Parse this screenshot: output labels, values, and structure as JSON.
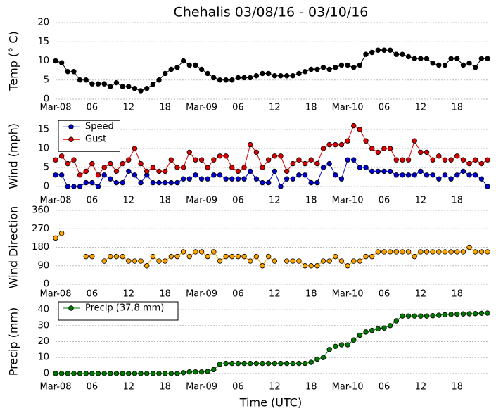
{
  "chart_data": [
    {
      "type": "line",
      "title": "Chehalis 03/08/16 - 03/10/16",
      "ylabel": "Temp (° C)",
      "categories": [
        "Mar-08",
        null,
        null,
        null,
        null,
        null,
        "06",
        null,
        null,
        null,
        null,
        null,
        "12",
        null,
        null,
        null,
        null,
        null,
        "18",
        null,
        null,
        null,
        null,
        null,
        "Mar-09",
        null,
        null,
        null,
        null,
        null,
        "06",
        null,
        null,
        null,
        null,
        null,
        "12",
        null,
        null,
        null,
        null,
        null,
        "18",
        null,
        null,
        null,
        null,
        null,
        "Mar-10",
        null,
        null,
        null,
        null,
        null,
        "06",
        null,
        null,
        null,
        null,
        null,
        "12",
        null,
        null,
        null,
        null,
        null,
        "18",
        null,
        null,
        null,
        null,
        null
      ],
      "ylim": [
        0,
        20
      ],
      "yticks": [
        0,
        5,
        10,
        15,
        20
      ],
      "grid": true,
      "series": [
        {
          "color": "#000000",
          "values": [
            10,
            9.5,
            7.2,
            7.2,
            5,
            5,
            4,
            4,
            4,
            3.3,
            4.3,
            3.3,
            3.3,
            2.8,
            2.2,
            2.8,
            3.9,
            5,
            6.7,
            7.8,
            8.3,
            10,
            8.9,
            8.9,
            7.8,
            6.7,
            5.6,
            5,
            5,
            5,
            5.6,
            5.6,
            5.6,
            6.1,
            6.7,
            6.7,
            6.1,
            6.1,
            6.1,
            6.1,
            6.7,
            7.2,
            7.8,
            7.8,
            8.3,
            7.8,
            8.3,
            8.9,
            8.9,
            8.3,
            8.9,
            11.7,
            12.2,
            12.8,
            12.8,
            12.8,
            11.7,
            11.7,
            11.1,
            10.6,
            10.6,
            10.6,
            9.4,
            8.9,
            8.9,
            10.6,
            10.6,
            8.9,
            9.4,
            8.3,
            10.6,
            10.6
          ]
        }
      ]
    },
    {
      "type": "line",
      "ylabel": "Wind (mph)",
      "legend": "upper left",
      "categories": [
        "Mar-08",
        null,
        null,
        null,
        null,
        null,
        "06",
        null,
        null,
        null,
        null,
        null,
        "12",
        null,
        null,
        null,
        null,
        null,
        "18",
        null,
        null,
        null,
        null,
        null,
        "Mar-09",
        null,
        null,
        null,
        null,
        null,
        "06",
        null,
        null,
        null,
        null,
        null,
        "12",
        null,
        null,
        null,
        null,
        null,
        "18",
        null,
        null,
        null,
        null,
        null,
        "Mar-10",
        null,
        null,
        null,
        null,
        null,
        "06",
        null,
        null,
        null,
        null,
        null,
        "12",
        null,
        null,
        null,
        null,
        null,
        "18",
        null,
        null,
        null,
        null,
        null
      ],
      "ylim": [
        -1,
        17
      ],
      "yticks": [
        0,
        5,
        10,
        15
      ],
      "grid": true,
      "series": [
        {
          "name": "Speed",
          "color": "#0000cc",
          "values": [
            3,
            3,
            0,
            0,
            0,
            1,
            1,
            0,
            3,
            2,
            1,
            1,
            4,
            3,
            1,
            3,
            1,
            1,
            1,
            1,
            1,
            2,
            2,
            3,
            2,
            2,
            3,
            3,
            2,
            2,
            2,
            2,
            4,
            2,
            1,
            1,
            4,
            0,
            2,
            2,
            3,
            3,
            1,
            1,
            5,
            6,
            3,
            2,
            7,
            7,
            5,
            5,
            4,
            4,
            4,
            4,
            3,
            3,
            3,
            3,
            4,
            3,
            3,
            2,
            3,
            2,
            3,
            4,
            3,
            3,
            2,
            0
          ]
        },
        {
          "name": "Gust",
          "color": "#dd0000",
          "values": [
            7,
            8,
            6,
            7,
            3,
            4,
            6,
            3,
            5,
            6,
            4,
            6,
            7,
            10,
            6,
            4,
            5,
            4,
            4,
            7,
            5,
            5,
            9,
            7,
            7,
            5,
            7,
            8,
            8,
            5,
            4,
            5,
            11,
            9,
            5,
            7,
            8,
            8,
            4,
            6,
            7,
            6,
            7,
            6,
            10,
            11,
            11,
            11,
            12,
            16,
            15,
            12,
            10,
            9,
            10,
            10,
            7,
            7,
            7,
            12,
            9,
            9,
            7,
            8,
            7,
            7,
            8,
            7,
            6,
            7,
            6,
            7
          ]
        }
      ]
    },
    {
      "type": "line",
      "ylabel": "Wind Direction",
      "categories": [
        "Mar-08",
        null,
        null,
        null,
        null,
        null,
        "06",
        null,
        null,
        null,
        null,
        null,
        "12",
        null,
        null,
        null,
        null,
        null,
        "18",
        null,
        null,
        null,
        null,
        null,
        "Mar-09",
        null,
        null,
        null,
        null,
        null,
        "06",
        null,
        null,
        null,
        null,
        null,
        "12",
        null,
        null,
        null,
        null,
        null,
        "18",
        null,
        null,
        null,
        null,
        null,
        "Mar-10",
        null,
        null,
        null,
        null,
        null,
        "06",
        null,
        null,
        null,
        null,
        null,
        "12",
        null,
        null,
        null,
        null,
        null,
        "18",
        null,
        null,
        null,
        null,
        null
      ],
      "ylim": [
        0,
        360
      ],
      "yticks": [
        0,
        90,
        180,
        270,
        360
      ],
      "grid": true,
      "series": [
        {
          "color": "#ffa500",
          "values": [
            225,
            248,
            null,
            null,
            null,
            135,
            135,
            null,
            113,
            135,
            135,
            135,
            113,
            113,
            113,
            90,
            135,
            113,
            113,
            135,
            135,
            158,
            135,
            158,
            158,
            135,
            158,
            113,
            135,
            135,
            135,
            135,
            113,
            135,
            90,
            135,
            113,
            null,
            113,
            113,
            113,
            90,
            90,
            90,
            113,
            113,
            135,
            113,
            90,
            113,
            113,
            135,
            135,
            158,
            158,
            158,
            158,
            158,
            158,
            135,
            158,
            158,
            158,
            158,
            158,
            158,
            158,
            158,
            180,
            158,
            158,
            158
          ]
        }
      ]
    },
    {
      "type": "line",
      "ylabel": "Precip (mm)",
      "xlabel": "Time (UTC)",
      "legend": "upper left",
      "categories": [
        "Mar-08",
        null,
        null,
        null,
        null,
        null,
        "06",
        null,
        null,
        null,
        null,
        null,
        "12",
        null,
        null,
        null,
        null,
        null,
        "18",
        null,
        null,
        null,
        null,
        null,
        "Mar-09",
        null,
        null,
        null,
        null,
        null,
        "06",
        null,
        null,
        null,
        null,
        null,
        "12",
        null,
        null,
        null,
        null,
        null,
        "18",
        null,
        null,
        null,
        null,
        null,
        "Mar-10",
        null,
        null,
        null,
        null,
        null,
        "06",
        null,
        null,
        null,
        null,
        null,
        "12",
        null,
        null,
        null,
        null,
        null,
        "18",
        null,
        null,
        null,
        null,
        null
      ],
      "ylim": [
        -4,
        44
      ],
      "yticks": [
        0,
        10,
        20,
        30,
        40
      ],
      "grid": true,
      "series": [
        {
          "name": "Precip (37.8 mm)",
          "color": "#007700",
          "values": [
            0,
            0,
            0,
            0,
            0,
            0,
            0,
            0,
            0,
            0,
            0,
            0,
            0,
            0,
            0,
            0,
            0,
            0,
            0,
            0,
            0,
            0.5,
            1,
            1,
            1,
            1.3,
            2.5,
            5.8,
            6.3,
            6.3,
            6.3,
            6.3,
            6.3,
            6.3,
            6.3,
            6.3,
            6.3,
            6.3,
            6.3,
            6.3,
            6.3,
            6.3,
            7,
            9,
            10,
            15,
            17,
            18,
            18,
            21,
            24,
            26,
            27,
            28,
            28.5,
            30,
            33,
            36,
            36,
            36,
            36,
            36,
            36.2,
            36.5,
            36.8,
            37,
            37.2,
            37.3,
            37.4,
            37.5,
            37.7,
            37.8
          ]
        }
      ]
    }
  ]
}
